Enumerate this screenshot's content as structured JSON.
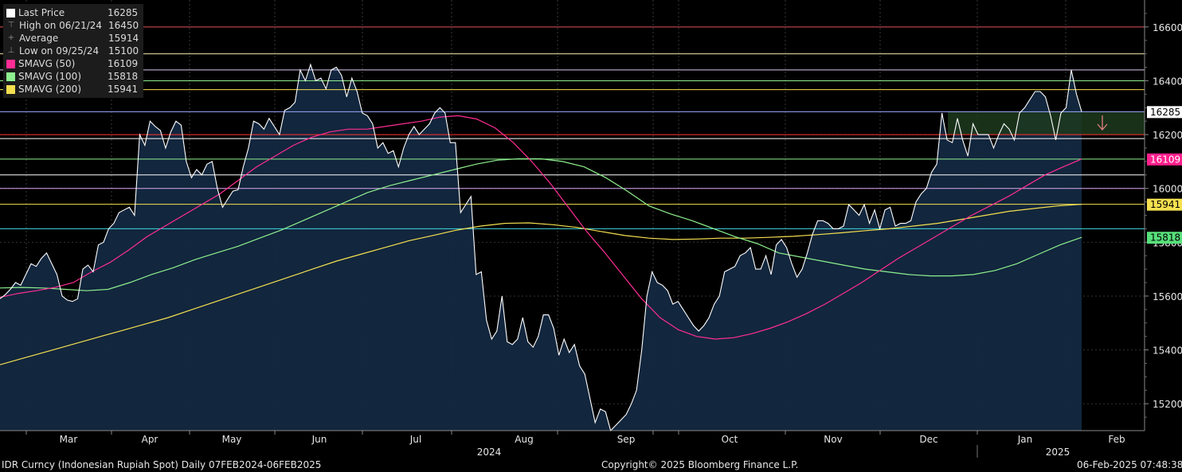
{
  "chart_data": {
    "type": "area",
    "y_ticks": [
      15200,
      15400,
      15600,
      15800,
      16000,
      16200,
      16400,
      16600
    ],
    "ylim": [
      15100,
      16700
    ],
    "x_month_labels": [
      "Mar",
      "Apr",
      "May",
      "Jun",
      "Jul",
      "Aug",
      "Sep",
      "Oct",
      "Nov",
      "Dec",
      "Jan",
      "Feb"
    ],
    "x_year_labels": [
      "2024",
      "2025"
    ],
    "legend": [
      {
        "label": "Last Price",
        "value": "16285",
        "icon": "white-square",
        "color": "#ffffff"
      },
      {
        "label": "High on 06/21/24",
        "value": "16450",
        "icon": "high-marker",
        "color": "#aaaaaa"
      },
      {
        "label": "Average",
        "value": "15914",
        "icon": "average-marker",
        "color": "#aaaaaa"
      },
      {
        "label": "Low on 09/25/24",
        "value": "15100",
        "icon": "low-marker",
        "color": "#aaaaaa"
      },
      {
        "label": "SMAVG (50)",
        "value": "16109",
        "icon": "magenta-square",
        "color": "#ff2d95"
      },
      {
        "label": "SMAVG (100)",
        "value": "15818",
        "icon": "green-square",
        "color": "#8ef08e"
      },
      {
        "label": "SMAVG (200)",
        "value": "15941",
        "icon": "yellow-square",
        "color": "#f5e050"
      }
    ],
    "right_labels": [
      {
        "text": "16285",
        "value": 16285,
        "bg": "#ffffff",
        "fg": "#000000"
      },
      {
        "text": "16109",
        "value": 16109,
        "bg": "#ff1e8c",
        "fg": "#ffffff"
      },
      {
        "text": "15941",
        "value": 15941,
        "bg": "#f5e050",
        "fg": "#000000"
      },
      {
        "text": "15818",
        "value": 15818,
        "bg": "#57e07a",
        "fg": "#000000"
      }
    ],
    "horizontal_lines": [
      {
        "value": 16600,
        "color": "#e05050"
      },
      {
        "value": 16500,
        "color": "#f2e8b0"
      },
      {
        "value": 16440,
        "color": "#d9c8f2"
      },
      {
        "value": 16400,
        "color": "#8ef08e"
      },
      {
        "value": 16367,
        "color": "#f5e050"
      },
      {
        "value": 16285,
        "color": "#9aa8ff"
      },
      {
        "value": 16200,
        "color": "#ff3030"
      },
      {
        "value": 16185,
        "color": "#ffffff"
      },
      {
        "value": 16109,
        "color": "#8ef08e"
      },
      {
        "value": 16050,
        "color": "#ffffff"
      },
      {
        "value": 16000,
        "color": "#d9a8f0"
      },
      {
        "value": 15941,
        "color": "#f5e050"
      },
      {
        "value": 15850,
        "color": "#40d8e0"
      }
    ],
    "series": [
      {
        "name": "Last Price",
        "color": "#ffffff",
        "values": [
          15590,
          15605,
          15625,
          15650,
          15640,
          15680,
          15720,
          15710,
          15740,
          15760,
          15720,
          15680,
          15600,
          15585,
          15580,
          15590,
          15700,
          15715,
          15690,
          15790,
          15800,
          15850,
          15870,
          15910,
          15920,
          15930,
          15900,
          16200,
          16160,
          16250,
          16230,
          16215,
          16150,
          16210,
          16250,
          16235,
          16100,
          16040,
          16070,
          16050,
          16090,
          16100,
          16000,
          15930,
          15960,
          15990,
          15995,
          16080,
          16150,
          16250,
          16240,
          16220,
          16260,
          16230,
          16200,
          16290,
          16300,
          16320,
          16440,
          16400,
          16460,
          16400,
          16410,
          16370,
          16440,
          16450,
          16420,
          16340,
          16410,
          16360,
          16280,
          16270,
          16240,
          16150,
          16170,
          16130,
          16140,
          16080,
          16150,
          16200,
          16230,
          16200,
          16220,
          16240,
          16280,
          16300,
          16280,
          16170,
          16170,
          15910,
          15940,
          15970,
          15680,
          15690,
          15510,
          15440,
          15470,
          15600,
          15430,
          15420,
          15440,
          15520,
          15430,
          15410,
          15450,
          15530,
          15530,
          15480,
          15380,
          15440,
          15390,
          15420,
          15340,
          15310,
          15220,
          15130,
          15180,
          15170,
          15100,
          15120,
          15140,
          15160,
          15200,
          15250,
          15400,
          15600,
          15690,
          15650,
          15640,
          15620,
          15570,
          15580,
          15550,
          15520,
          15490,
          15470,
          15490,
          15520,
          15570,
          15600,
          15690,
          15700,
          15710,
          15750,
          15760,
          15780,
          15700,
          15700,
          15750,
          15680,
          15790,
          15810,
          15780,
          15720,
          15670,
          15700,
          15760,
          15830,
          15880,
          15880,
          15870,
          15850,
          15850,
          15860,
          15940,
          15920,
          15900,
          15940,
          15870,
          15920,
          15850,
          15920,
          15930,
          15860,
          15870,
          15870,
          15880,
          15950,
          15980,
          16000,
          16060,
          16090,
          16280,
          16180,
          16170,
          16260,
          16180,
          16120,
          16240,
          16200,
          16200,
          16200,
          16150,
          16200,
          16240,
          16220,
          16180,
          16280,
          16300,
          16330,
          16360,
          16360,
          16340,
          16270,
          16180,
          16280,
          16300,
          16440,
          16350,
          16285
        ]
      },
      {
        "name": "SMAVG (50)",
        "color": "#ff2d95",
        "values": [
          15595,
          15610,
          15620,
          15632,
          15650,
          15690,
          15725,
          15770,
          15820,
          15860,
          15900,
          15940,
          15980,
          16030,
          16080,
          16120,
          16160,
          16190,
          16210,
          16220,
          16220,
          16230,
          16240,
          16250,
          16265,
          16270,
          16258,
          16225,
          16170,
          16100,
          16020,
          15930,
          15840,
          15760,
          15675,
          15590,
          15520,
          15475,
          15450,
          15440,
          15445,
          15460,
          15480,
          15505,
          15535,
          15570,
          15610,
          15650,
          15695,
          15740,
          15780,
          15820,
          15860,
          15900,
          15935,
          15970,
          16010,
          16050,
          16080,
          16109
        ]
      },
      {
        "name": "SMAVG (100)",
        "color": "#8ef08e",
        "values": [
          15630,
          15632,
          15630,
          15625,
          15620,
          15625,
          15650,
          15680,
          15705,
          15735,
          15760,
          15785,
          15815,
          15845,
          15880,
          15915,
          15950,
          15985,
          16010,
          16030,
          16050,
          16070,
          16090,
          16105,
          16110,
          16110,
          16100,
          16080,
          16040,
          15990,
          15935,
          15905,
          15880,
          15850,
          15820,
          15795,
          15760,
          15745,
          15730,
          15715,
          15700,
          15690,
          15680,
          15675,
          15675,
          15680,
          15695,
          15720,
          15755,
          15790,
          15818
        ]
      },
      {
        "name": "SMAVG (200)",
        "color": "#f5e050",
        "values": [
          15345,
          15370,
          15395,
          15420,
          15445,
          15470,
          15495,
          15520,
          15550,
          15580,
          15610,
          15640,
          15670,
          15700,
          15730,
          15755,
          15780,
          15805,
          15825,
          15845,
          15860,
          15870,
          15872,
          15865,
          15855,
          15840,
          15825,
          15815,
          15810,
          15812,
          15815,
          15815,
          15818,
          15822,
          15828,
          15835,
          15843,
          15850,
          15860,
          15870,
          15885,
          15900,
          15915,
          15925,
          15935,
          15941
        ]
      }
    ],
    "header_text": "IDR Curncy (Indonesian Rupiah Spot)  Daily 07FEB2024-06FEB2025",
    "copyright": "Copyright© 2025 Bloomberg Finance L.P.",
    "timestamp": "06-Feb-2025 07:48:38"
  }
}
